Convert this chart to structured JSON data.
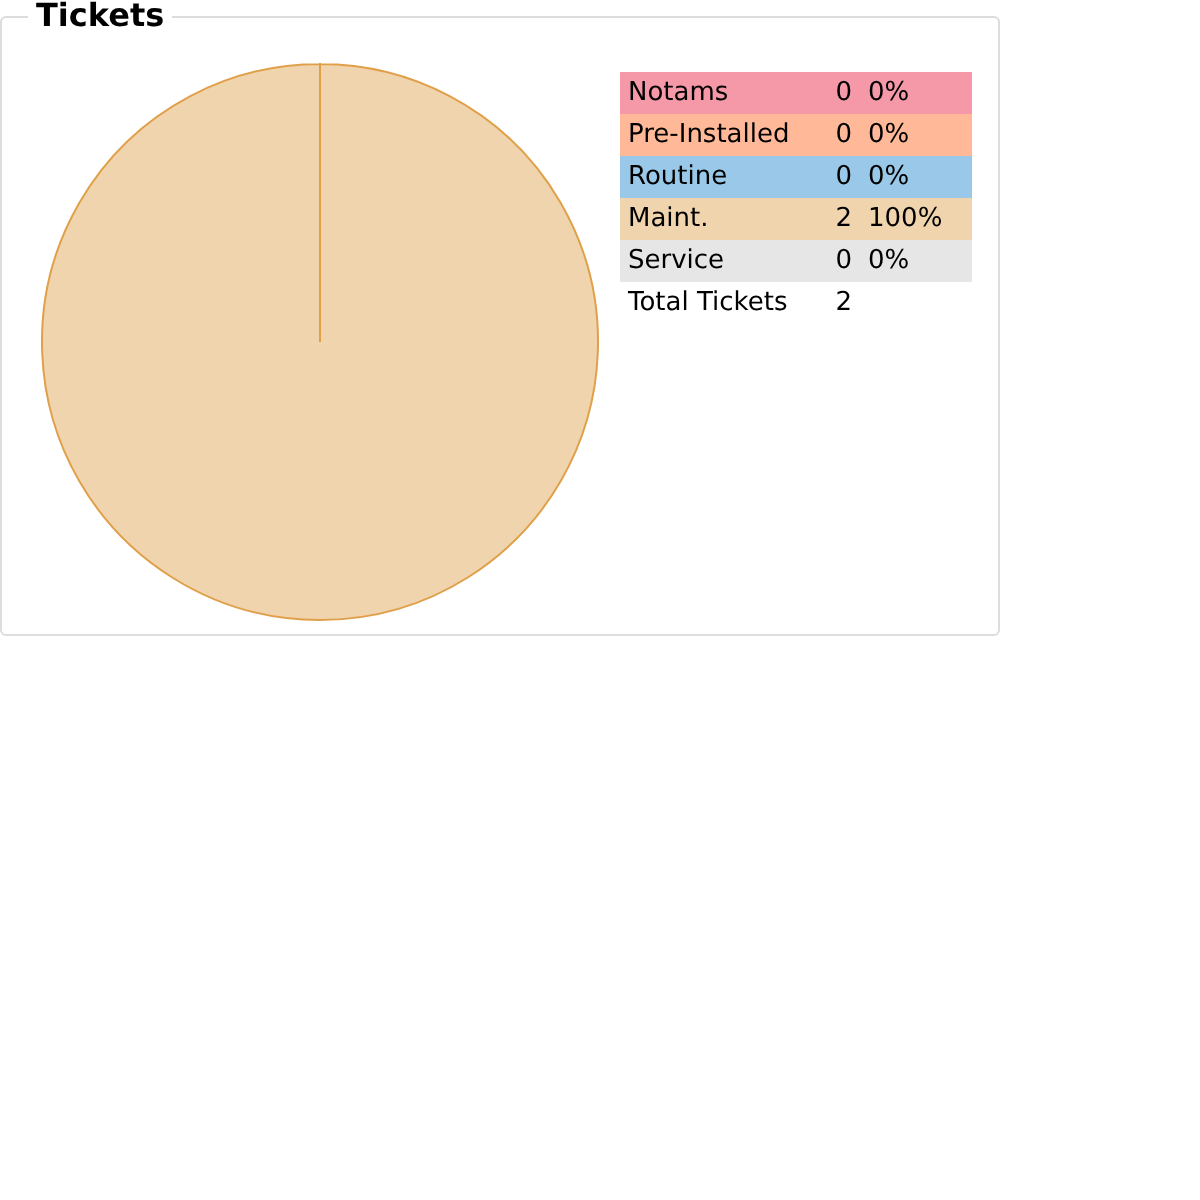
{
  "chart_data": {
    "type": "pie",
    "title": "Tickets",
    "categories": [
      "Notams",
      "Pre-Installed",
      "Routine",
      "Maint.",
      "Service"
    ],
    "values": [
      0,
      0,
      0,
      100,
      0
    ],
    "colors": [
      "#f599a9",
      "#ffb999",
      "#99c8e8",
      "#f0d4ae",
      "#e6e6e6"
    ],
    "annotations": [
      "0",
      "0",
      "0",
      "2",
      "0",
      "0%",
      "0%",
      "0%",
      "100%",
      "0%",
      "Total Tickets"
    ],
    "totals": [
      "2"
    ]
  }
}
